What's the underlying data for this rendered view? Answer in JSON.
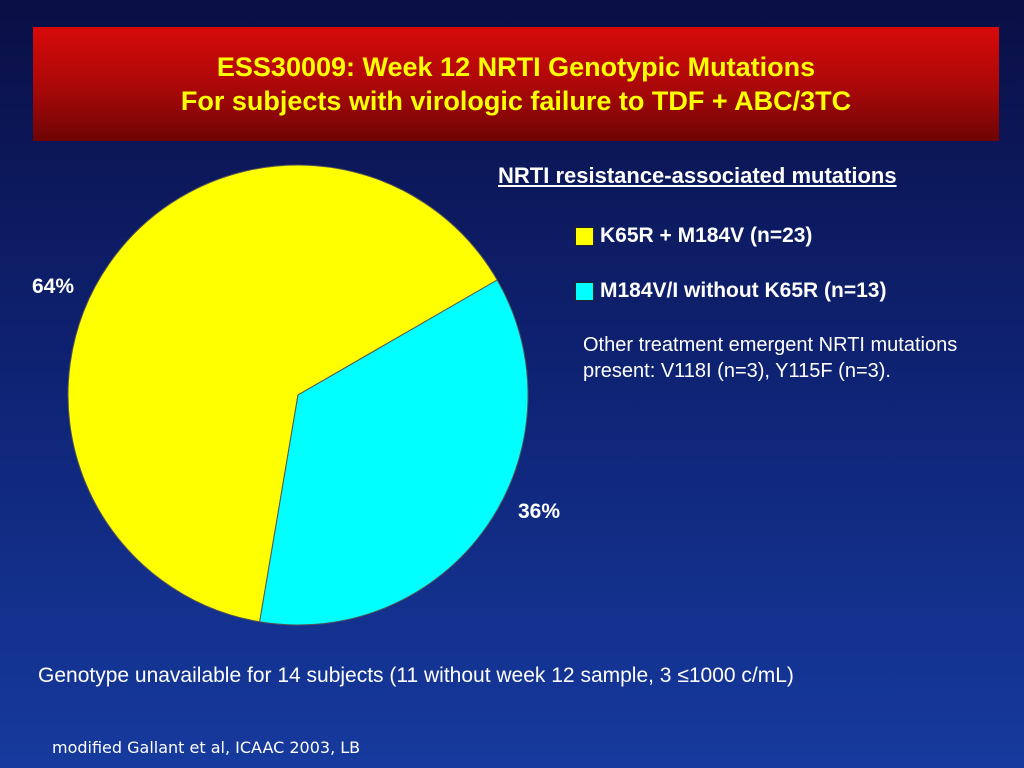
{
  "title": {
    "line1": "ESS30009: Week 12 NRTI Genotypic Mutations",
    "line2": "For subjects with virologic failure to TDF + ABC/3TC"
  },
  "legend": {
    "title": "NRTI resistance-associated mutations",
    "items": [
      {
        "label": "K65R + M184V (n=23)",
        "color": "#ffff00"
      },
      {
        "label": "M184V/I without K65R (n=13)",
        "color": "#00ffff"
      }
    ]
  },
  "note": "Other treatment emergent NRTI mutations present: V118I (n=3), Y115F (n=3).",
  "footnote": "Genotype unavailable for 14 subjects (11 without week 12 sample, 3 ≤1000 c/mL)",
  "citation": "modified Gallant et al, ICAAC 2003, LB",
  "chart_data": {
    "type": "pie",
    "slices": [
      {
        "name": "K65R + M184V (n=23)",
        "value": 64,
        "label": "64%",
        "color": "#ffff00"
      },
      {
        "name": "M184V/I without K65R (n=13)",
        "value": 36,
        "label": "36%",
        "color": "#00ffff"
      }
    ],
    "legend_position": "right"
  }
}
